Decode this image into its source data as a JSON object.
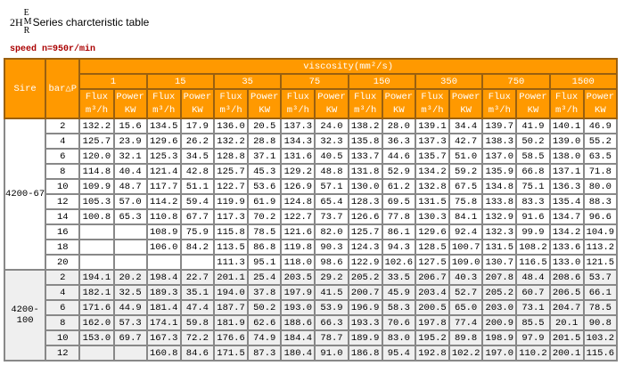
{
  "title": {
    "prefix": "2H",
    "stack": [
      "E",
      "M",
      "R"
    ],
    "text": "Series charcteristic table"
  },
  "speed": "speed n=950r/min",
  "header": {
    "size": "Sire",
    "bar": "bar△P",
    "viscosity": "viscosity(mm²/s)",
    "viscosities": [
      "1",
      "15",
      "35",
      "75",
      "150",
      "350",
      "750",
      "1500"
    ],
    "flux": "Flux",
    "flux_unit": "m³/h",
    "power": "Power",
    "power_unit": "KW"
  },
  "colors": {
    "header_bg": "#ff9900",
    "header_text": "#ffffff",
    "group2_bg": "#efefef"
  },
  "groups": [
    {
      "size": "4200-67",
      "rows": [
        {
          "p": "2",
          "v": [
            "132.2",
            "15.6",
            "134.5",
            "17.9",
            "136.0",
            "20.5",
            "137.3",
            "24.0",
            "138.2",
            "28.0",
            "139.1",
            "34.4",
            "139.7",
            "41.9",
            "140.1",
            "46.9"
          ]
        },
        {
          "p": "4",
          "v": [
            "125.7",
            "23.9",
            "129.6",
            "26.2",
            "132.2",
            "28.8",
            "134.3",
            "32.3",
            "135.8",
            "36.3",
            "137.3",
            "42.7",
            "138.3",
            "50.2",
            "139.0",
            "55.2"
          ]
        },
        {
          "p": "6",
          "v": [
            "120.0",
            "32.1",
            "125.3",
            "34.5",
            "128.8",
            "37.1",
            "131.6",
            "40.5",
            "133.7",
            "44.6",
            "135.7",
            "51.0",
            "137.0",
            "58.5",
            "138.0",
            "63.5"
          ]
        },
        {
          "p": "8",
          "v": [
            "114.8",
            "40.4",
            "121.4",
            "42.8",
            "125.7",
            "45.3",
            "129.2",
            "48.8",
            "131.8",
            "52.9",
            "134.2",
            "59.2",
            "135.9",
            "66.8",
            "137.1",
            "71.8"
          ]
        },
        {
          "p": "10",
          "v": [
            "109.9",
            "48.7",
            "117.7",
            "51.1",
            "122.7",
            "53.6",
            "126.9",
            "57.1",
            "130.0",
            "61.2",
            "132.8",
            "67.5",
            "134.8",
            "75.1",
            "136.3",
            "80.0"
          ]
        },
        {
          "p": "12",
          "v": [
            "105.3",
            "57.0",
            "114.2",
            "59.4",
            "119.9",
            "61.9",
            "124.8",
            "65.4",
            "128.3",
            "69.5",
            "131.5",
            "75.8",
            "133.8",
            "83.3",
            "135.4",
            "88.3"
          ]
        },
        {
          "p": "14",
          "v": [
            "100.8",
            "65.3",
            "110.8",
            "67.7",
            "117.3",
            "70.2",
            "122.7",
            "73.7",
            "126.6",
            "77.8",
            "130.3",
            "84.1",
            "132.9",
            "91.6",
            "134.7",
            "96.6"
          ]
        },
        {
          "p": "16",
          "v": [
            "",
            "",
            "108.9",
            "75.9",
            "115.8",
            "78.5",
            "121.6",
            "82.0",
            "125.7",
            "86.1",
            "129.6",
            "92.4",
            "132.3",
            "99.9",
            "134.2",
            "104.9"
          ]
        },
        {
          "p": "18",
          "v": [
            "",
            "",
            "106.0",
            "84.2",
            "113.5",
            "86.8",
            "119.8",
            "90.3",
            "124.3",
            "94.3",
            "128.5",
            "100.7",
            "131.5",
            "108.2",
            "133.6",
            "113.2"
          ]
        },
        {
          "p": "20",
          "v": [
            "",
            "",
            "",
            "",
            "111.3",
            "95.1",
            "118.0",
            "98.6",
            "122.9",
            "102.6",
            "127.5",
            "109.0",
            "130.7",
            "116.5",
            "133.0",
            "121.5"
          ]
        }
      ]
    },
    {
      "size": "4200-100",
      "rows": [
        {
          "p": "2",
          "v": [
            "194.1",
            "20.2",
            "198.4",
            "22.7",
            "201.1",
            "25.4",
            "203.5",
            "29.2",
            "205.2",
            "33.5",
            "206.7",
            "40.3",
            "207.8",
            "48.4",
            "208.6",
            "53.7"
          ]
        },
        {
          "p": "4",
          "v": [
            "182.1",
            "32.5",
            "189.3",
            "35.1",
            "194.0",
            "37.8",
            "197.9",
            "41.5",
            "200.7",
            "45.9",
            "203.4",
            "52.7",
            "205.2",
            "60.7",
            "206.5",
            "66.1"
          ]
        },
        {
          "p": "6",
          "v": [
            "171.6",
            "44.9",
            "181.4",
            "47.4",
            "187.7",
            "50.2",
            "193.0",
            "53.9",
            "196.9",
            "58.3",
            "200.5",
            "65.0",
            "203.0",
            "73.1",
            "204.7",
            "78.5"
          ]
        },
        {
          "p": "8",
          "v": [
            "162.0",
            "57.3",
            "174.1",
            "59.8",
            "181.9",
            "62.6",
            "188.6",
            "66.3",
            "193.3",
            "70.6",
            "197.8",
            "77.4",
            "200.9",
            "85.5",
            "20.1",
            "90.8"
          ]
        },
        {
          "p": "10",
          "v": [
            "153.0",
            "69.7",
            "167.3",
            "72.2",
            "176.6",
            "74.9",
            "184.4",
            "78.7",
            "189.9",
            "83.0",
            "195.2",
            "89.8",
            "198.9",
            "97.9",
            "201.5",
            "103.2"
          ]
        },
        {
          "p": "12",
          "v": [
            "",
            "",
            "160.8",
            "84.6",
            "171.5",
            "87.3",
            "180.4",
            "91.0",
            "186.8",
            "95.4",
            "192.8",
            "102.2",
            "197.0",
            "110.2",
            "200.1",
            "115.6"
          ]
        }
      ]
    }
  ]
}
